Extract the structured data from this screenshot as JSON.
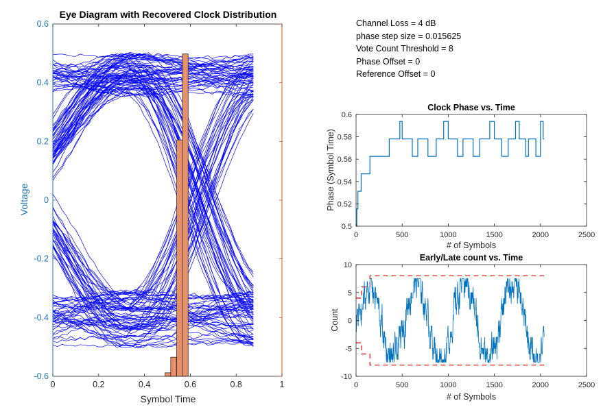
{
  "info_box": {
    "lines": [
      "Channel Loss = 4 dB",
      "phase step size = 0.015625",
      "Vote Count Threshold = 8",
      "Phase Offset = 0",
      "Reference Offset = 0"
    ]
  },
  "colors": {
    "eye_traces": "#0000ff",
    "histogram_fill": "#e6916b",
    "histogram_edge": "#3a2a22",
    "right_axis": "#d9541f",
    "left_axis": "#1f77b4",
    "line_series": "#0072bd",
    "threshold_dashed": "#e00000"
  },
  "chart_data": [
    {
      "type": "line",
      "title": "Eye Diagram with Recovered Clock Distribution",
      "xlabel": "Symbol Time",
      "ylabel": "Voltage",
      "xlim": [
        0,
        1
      ],
      "ylim": [
        -0.6,
        0.6
      ],
      "xticks": [
        "0",
        "0.2",
        "0.4",
        "0.6",
        "0.8",
        "1"
      ],
      "yticks": [
        "-0.6",
        "-0.4",
        "-0.2",
        "0",
        "0.2",
        "0.4",
        "0.6"
      ],
      "eye": {
        "symbol_span": [
          0,
          0.875
        ],
        "crossing_time": 0.08,
        "second_crossing": 0.6,
        "levels_high": [
          0.35,
          0.5
        ],
        "levels_low": [
          -0.5,
          -0.3
        ],
        "mid_band": [
          -0.02,
          0.12
        ]
      },
      "histogram": {
        "bins": [
          0.502,
          0.527,
          0.553,
          0.578
        ],
        "heights": [
          -0.588,
          -0.535,
          0.205,
          0.498
        ],
        "bin_width": 0.025,
        "base": -0.6
      }
    },
    {
      "type": "line",
      "title": "Clock Phase vs. Time",
      "xlabel": "# of Symbols",
      "ylabel": "Phase (Symbol Time)",
      "xlim": [
        0,
        2500
      ],
      "ylim": [
        0.5,
        0.6
      ],
      "xticks": [
        "0",
        "500",
        "1000",
        "1500",
        "2000",
        "2500"
      ],
      "yticks": [
        "0.5",
        "0.52",
        "0.54",
        "0.56",
        "0.58",
        "0.6"
      ],
      "steps": [
        [
          0,
          0.5
        ],
        [
          8,
          0.5156
        ],
        [
          20,
          0.5313
        ],
        [
          55,
          0.5469
        ],
        [
          150,
          0.5625
        ],
        [
          360,
          0.5781
        ],
        [
          475,
          0.5938
        ],
        [
          500,
          0.5781
        ],
        [
          610,
          0.5625
        ],
        [
          670,
          0.5781
        ],
        [
          780,
          0.5625
        ],
        [
          870,
          0.5781
        ],
        [
          950,
          0.5938
        ],
        [
          1000,
          0.5781
        ],
        [
          1100,
          0.5625
        ],
        [
          1160,
          0.5781
        ],
        [
          1270,
          0.5625
        ],
        [
          1340,
          0.5781
        ],
        [
          1450,
          0.5938
        ],
        [
          1500,
          0.5781
        ],
        [
          1580,
          0.5625
        ],
        [
          1650,
          0.5781
        ],
        [
          1730,
          0.5938
        ],
        [
          1770,
          0.5781
        ],
        [
          1840,
          0.5625
        ],
        [
          1870,
          0.5781
        ],
        [
          1950,
          0.5625
        ],
        [
          2000,
          0.5938
        ],
        [
          2030,
          0.5781
        ],
        [
          2040,
          0.5781
        ]
      ]
    },
    {
      "type": "line",
      "title": "Early/Late count vs. Time",
      "xlabel": "# of Symbols",
      "ylabel": "Count",
      "xlim": [
        0,
        2500
      ],
      "ylim": [
        -10,
        10
      ],
      "xticks": [
        "0",
        "500",
        "1000",
        "1500",
        "2000",
        "2500"
      ],
      "yticks": [
        "-10",
        "-5",
        "0",
        "5",
        "10"
      ],
      "threshold_upper": [
        [
          0,
          4
        ],
        [
          60,
          4
        ],
        [
          60,
          6
        ],
        [
          150,
          6
        ],
        [
          150,
          8
        ],
        [
          2040,
          8
        ]
      ],
      "threshold_lower": [
        [
          0,
          -4
        ],
        [
          60,
          -4
        ],
        [
          60,
          -6
        ],
        [
          150,
          -6
        ],
        [
          150,
          -8
        ],
        [
          2040,
          -8
        ]
      ],
      "count_period": 520,
      "count_amplitude": 7,
      "n_symbols": 2040
    }
  ]
}
